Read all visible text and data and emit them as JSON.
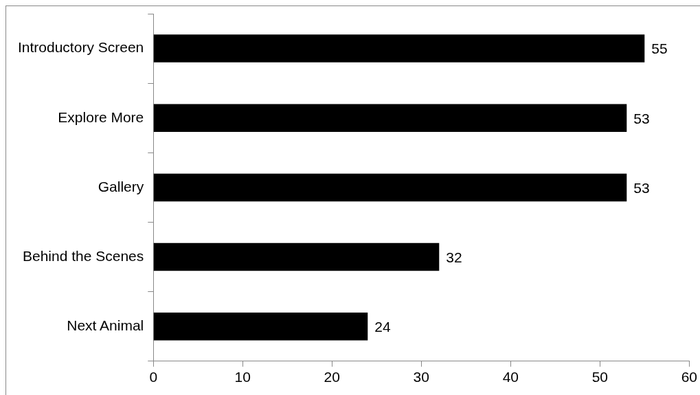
{
  "chart_data": {
    "type": "bar",
    "orientation": "horizontal",
    "categories": [
      "Introductory Screen",
      "Explore More",
      "Gallery",
      "Behind the Scenes",
      "Next Animal"
    ],
    "values": [
      55,
      53,
      53,
      32,
      24
    ],
    "color": "#000000",
    "xlim": [
      0,
      60
    ],
    "xticks": [
      0,
      10,
      20,
      30,
      40,
      50,
      60
    ],
    "grid": false,
    "legend": false,
    "data_labels": true
  }
}
